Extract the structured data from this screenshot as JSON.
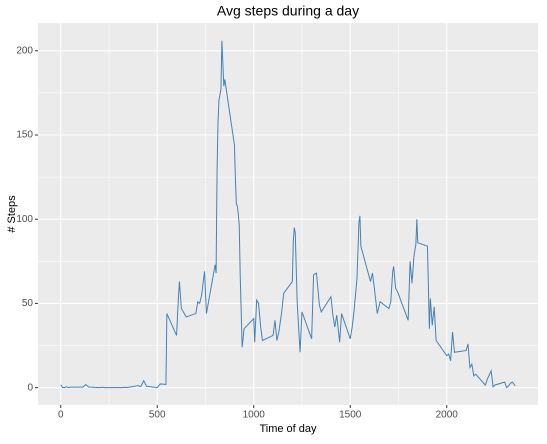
{
  "chart_data": {
    "type": "line",
    "title": "Avg steps during a day",
    "xlabel": "Time of day",
    "ylabel": "# Steps",
    "x": [
      0,
      10,
      20,
      30,
      40,
      50,
      100,
      115,
      130,
      145,
      200,
      215,
      230,
      245,
      300,
      315,
      330,
      345,
      400,
      415,
      430,
      445,
      500,
      515,
      530,
      545,
      550,
      600,
      610,
      615,
      625,
      640,
      650,
      700,
      710,
      720,
      730,
      745,
      755,
      800,
      805,
      810,
      815,
      820,
      830,
      835,
      845,
      850,
      900,
      905,
      910,
      915,
      920,
      925,
      930,
      940,
      950,
      1000,
      1005,
      1015,
      1025,
      1035,
      1045,
      1100,
      1110,
      1120,
      1130,
      1145,
      1155,
      1200,
      1205,
      1210,
      1215,
      1225,
      1240,
      1250,
      1300,
      1310,
      1325,
      1340,
      1350,
      1400,
      1410,
      1420,
      1430,
      1445,
      1455,
      1500,
      1510,
      1520,
      1535,
      1545,
      1550,
      1555,
      1605,
      1615,
      1625,
      1640,
      1655,
      1700,
      1710,
      1720,
      1725,
      1735,
      1745,
      1800,
      1810,
      1820,
      1830,
      1840,
      1845,
      1850,
      1900,
      1910,
      1915,
      1925,
      1935,
      1945,
      2000,
      2010,
      2020,
      2030,
      2040,
      2100,
      2110,
      2120,
      2130,
      2140,
      2150,
      2200,
      2210,
      2220,
      2230,
      2240,
      2250,
      2300,
      2310,
      2320,
      2330,
      2340,
      2355
    ],
    "series": [
      {
        "color": "#4682b4",
        "values": [
          1.7,
          0.1,
          0.1,
          0.5,
          0,
          0.3,
          0.3,
          0.3,
          1.8,
          0.4,
          0,
          0.2,
          0,
          0,
          0,
          0,
          0.2,
          0.1,
          1.2,
          0.7,
          4.1,
          0.8,
          0,
          2.2,
          2.1,
          1.9,
          44,
          31,
          54,
          63,
          47,
          44,
          42,
          44,
          51,
          50,
          55,
          69,
          44,
          73,
          68,
          129,
          158,
          171,
          177,
          206,
          179,
          183,
          144,
          124,
          109,
          108,
          103,
          96,
          66,
          24,
          35,
          41,
          27,
          52,
          50,
          37,
          28,
          31,
          40,
          28,
          33,
          45,
          56,
          63,
          87,
          95,
          92,
          51,
          21,
          45,
          29,
          67,
          68,
          49,
          45,
          54,
          43,
          36,
          43,
          27,
          44,
          29,
          36,
          46,
          65,
          98,
          102,
          84,
          63,
          68,
          59,
          44,
          51,
          47,
          51,
          69,
          72,
          59,
          57,
          40,
          75,
          62,
          78,
          85,
          100,
          86,
          84,
          35,
          53,
          37,
          48,
          28,
          19,
          20,
          16,
          33,
          21,
          22,
          26,
          12,
          14,
          7,
          8,
          1.5,
          5,
          7.5,
          10,
          0.5,
          1.6,
          3.3,
          0,
          1,
          2.6,
          3.3,
          1.1
        ]
      }
    ],
    "xlim": [
      -117.75,
      2472.75
    ],
    "xticks": [
      0,
      500,
      1000,
      1500,
      2000
    ],
    "ylim": [
      -10.3,
      216.5
    ],
    "yticks": [
      0,
      50,
      100,
      150,
      200
    ],
    "grid": true
  }
}
